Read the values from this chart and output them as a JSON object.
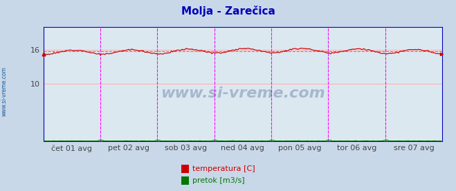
{
  "title": "Molja - Zarečica",
  "title_color": "#0000bb",
  "bg_color": "#c8d8e8",
  "plot_bg_color": "#dce8f0",
  "watermark": "www.si-vreme.com",
  "watermark_color": "#1a3a7a",
  "side_label": "www.si-vreme.com",
  "x_tick_labels": [
    "čet 01 avg",
    "pet 02 avg",
    "sob 03 avg",
    "ned 04 avg",
    "pon 05 avg",
    "tor 06 avg",
    "sre 07 avg"
  ],
  "y_ticks": [
    10,
    16
  ],
  "ylim": [
    0,
    20
  ],
  "xlim": [
    0,
    336
  ],
  "n_points": 336,
  "temp_color": "#cc0000",
  "temp_avg_color": "#dd6666",
  "temp_avg_value": 15.72,
  "flow_color": "#007700",
  "border_color": "#0000bb",
  "grid_h_color": "#ffaaaa",
  "grid_v_color": "#aaaaff",
  "day_line_color": "#ff00ff",
  "legend_temp_color": "#cc0000",
  "legend_flow_color": "#007700",
  "legend_temp_label": "temperatura [C]",
  "legend_flow_label": "pretok [m3/s]",
  "tick_label_color": "#444444",
  "tick_label_fontsize": 8
}
